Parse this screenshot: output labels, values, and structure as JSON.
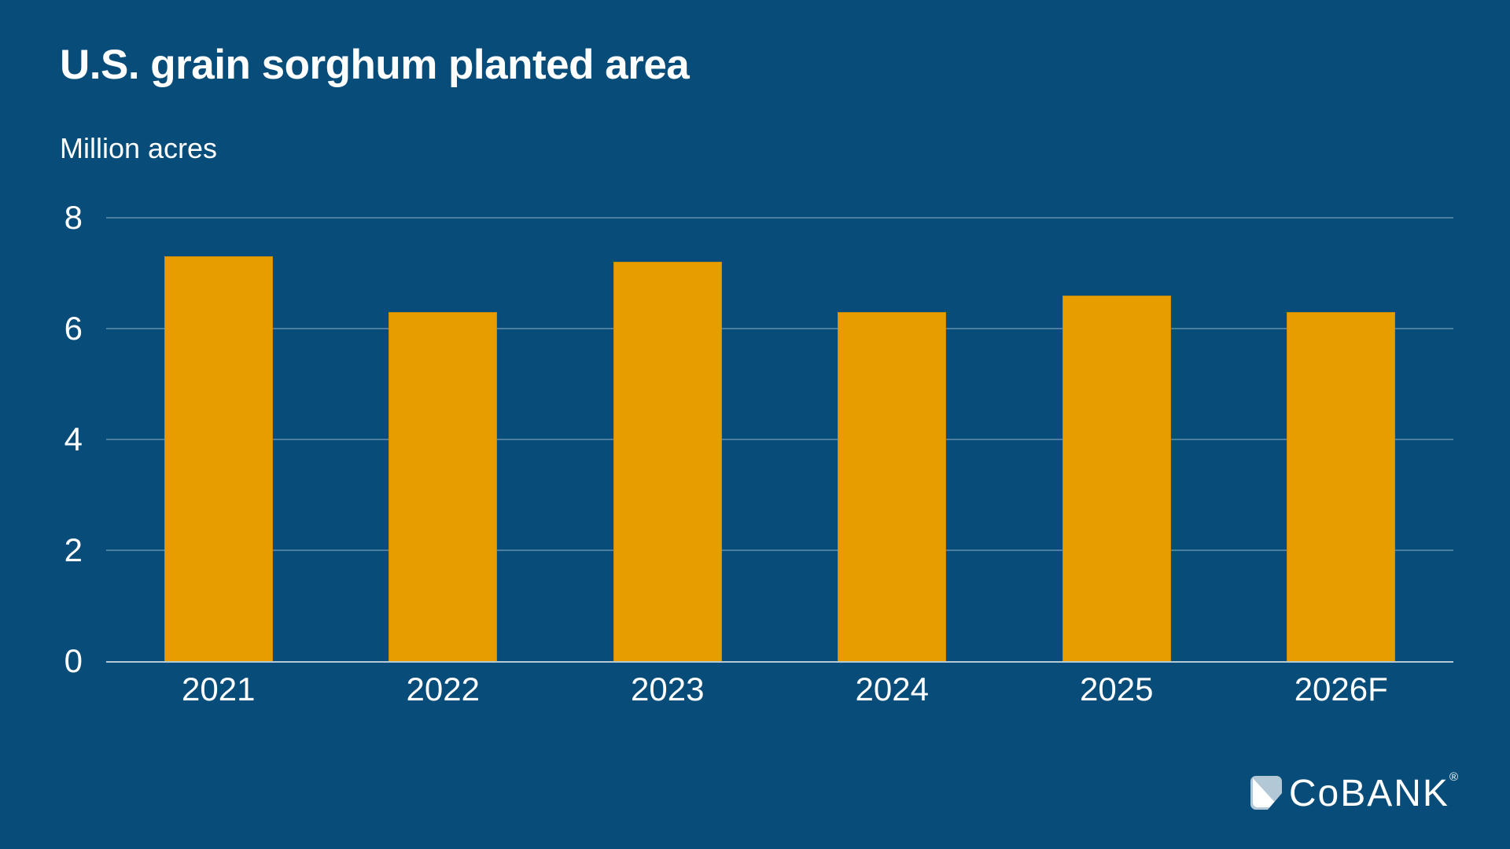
{
  "title": "U.S. grain sorghum planted area",
  "subtitle": "Million acres",
  "chart_data": {
    "type": "bar",
    "categories": [
      "2021",
      "2022",
      "2023",
      "2024",
      "2025",
      "2026F"
    ],
    "values": [
      7.3,
      6.3,
      7.2,
      6.3,
      6.6,
      6.3
    ],
    "title": "U.S. grain sorghum planted area",
    "xlabel": "",
    "ylabel": "Million acres",
    "ylim": [
      0,
      8
    ],
    "yticks": [
      0,
      2,
      4,
      6,
      8
    ],
    "grid": true,
    "legend_position": "none"
  },
  "colors": {
    "background": "#084D7A",
    "bar_fill": "#E79C00",
    "bar_border": "#D08C00",
    "gridline": "rgba(255,255,255,0.28)",
    "axis_line": "rgba(255,255,255,0.70)",
    "text": "#FFFFFF",
    "logo_mark_fill": "#B3C8D6",
    "logo_mark_sail": "#FFFFFF"
  },
  "logo": {
    "wordmark": "CoBANK",
    "registered": "®"
  }
}
